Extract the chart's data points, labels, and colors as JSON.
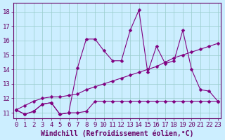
{
  "x": [
    0,
    1,
    2,
    3,
    4,
    5,
    6,
    7,
    8,
    9,
    10,
    11,
    12,
    13,
    14,
    15,
    16,
    17,
    18,
    19,
    20,
    21,
    22,
    23
  ],
  "series_spiky": [
    11.2,
    10.9,
    11.1,
    11.6,
    11.7,
    10.9,
    11.0,
    14.1,
    16.1,
    16.1,
    15.3,
    14.6,
    14.6,
    16.7,
    18.1,
    13.8,
    15.6,
    14.4,
    14.6,
    16.7,
    14.0,
    12.6,
    12.5,
    11.8
  ],
  "series_diagonal": [
    11.2,
    11.5,
    11.8,
    12.0,
    12.1,
    12.1,
    12.2,
    12.3,
    12.6,
    12.8,
    13.0,
    13.2,
    13.4,
    13.6,
    13.8,
    14.0,
    14.2,
    14.5,
    14.8,
    15.0,
    15.2,
    15.4,
    15.6,
    15.8
  ],
  "series_flat": [
    11.2,
    10.9,
    11.1,
    11.6,
    11.7,
    10.9,
    11.0,
    11.0,
    11.1,
    11.8,
    11.8,
    11.8,
    11.8,
    11.8,
    11.8,
    11.8,
    11.8,
    11.8,
    11.8,
    11.8,
    11.8,
    11.8,
    11.8,
    11.8
  ],
  "line_color": "#800080",
  "marker": "D",
  "marker_size": 2.5,
  "bg_color": "#cceeff",
  "grid_color": "#99cccc",
  "xlabel": "Windchill (Refroidissement éolien,°C)",
  "ylim": [
    10.6,
    18.6
  ],
  "xlim": [
    -0.3,
    23.3
  ],
  "yticks": [
    11,
    12,
    13,
    14,
    15,
    16,
    17,
    18
  ],
  "xticks": [
    0,
    1,
    2,
    3,
    4,
    5,
    6,
    7,
    8,
    9,
    10,
    11,
    12,
    13,
    14,
    15,
    16,
    17,
    18,
    19,
    20,
    21,
    22,
    23
  ],
  "font_color": "#660066",
  "tick_fontsize": 6.5,
  "xlabel_fontsize": 7.0
}
